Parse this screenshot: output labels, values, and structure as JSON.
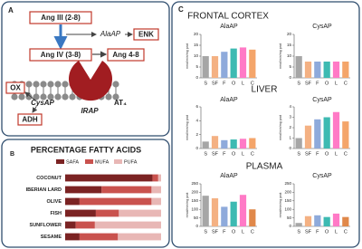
{
  "panels": {
    "a": "A",
    "b": "B",
    "c": "C",
    "sections": [
      "FRONTAL CORTEX",
      "LIVER",
      "PLASMA"
    ]
  },
  "diagram": {
    "ang3": "Ang III (2-8)",
    "alaap": "AlaAP",
    "enk": "ENK",
    "ang4": "Ang IV (3-8)",
    "ang48": "Ang 4-8",
    "ox": "OX",
    "cysap": "CysAP",
    "irap": "IRAP",
    "at4": "AT₄",
    "adh": "ADH"
  },
  "chart_data": [
    {
      "type": "hbar_stacked",
      "title": "PERCENTAGE FATTY ACIDS",
      "categories": [
        "COCONUT",
        "IBERIAN LARD",
        "OLIVE",
        "FISH",
        "SUNFLOWER",
        "SESAME"
      ],
      "xlim": [
        0,
        100
      ],
      "series": [
        {
          "name": "SAFA",
          "color": "#7b2323",
          "values": [
            91,
            38,
            15,
            32,
            11,
            15
          ]
        },
        {
          "name": "MUFA",
          "color": "#c9524e",
          "values": [
            6,
            52,
            75,
            24,
            20,
            40
          ]
        },
        {
          "name": "PUFA",
          "color": "#e8b7b5",
          "values": [
            3,
            10,
            10,
            44,
            69,
            45
          ]
        }
      ]
    },
    {
      "type": "bar",
      "title": "AlaAP",
      "y_label": "nmol/min/mg prot",
      "categories": [
        "S",
        "SF",
        "F",
        "O",
        "L",
        "C"
      ],
      "values": [
        10,
        10,
        12,
        13.5,
        14,
        13
      ],
      "colors": [
        "#a6a6a6",
        "#f4b183",
        "#8eaadb",
        "#3dbab2",
        "#ff7ac6",
        "#f4a56a"
      ],
      "ylim": [
        0,
        20
      ],
      "yticks": [
        0,
        5,
        10,
        15,
        20
      ]
    },
    {
      "type": "bar",
      "title": "CysAP",
      "y_label": "nmol/min/mg prot",
      "categories": [
        "S",
        "SF",
        "F",
        "O",
        "L",
        "C"
      ],
      "values": [
        10,
        7.5,
        7.5,
        7.5,
        7.5,
        7.5
      ],
      "colors": [
        "#a6a6a6",
        "#f4b183",
        "#8eaadb",
        "#3dbab2",
        "#ff7ac6",
        "#f4a56a"
      ],
      "ylim": [
        0,
        20
      ],
      "yticks": [
        0,
        5,
        10,
        15,
        20
      ]
    },
    {
      "type": "bar",
      "title": "AlaAP",
      "y_label": "nmol/min/mg prot",
      "categories": [
        "S",
        "SF",
        "F",
        "O",
        "L",
        "C"
      ],
      "values": [
        1,
        1.8,
        1.2,
        1.3,
        1.4,
        1.5
      ],
      "colors": [
        "#a6a6a6",
        "#f4b183",
        "#8eaadb",
        "#3dbab2",
        "#ff7ac6",
        "#f4a56a"
      ],
      "ylim": [
        0,
        6
      ],
      "yticks": [
        0,
        2,
        4,
        6
      ]
    },
    {
      "type": "bar",
      "title": "CysAP",
      "y_label": "nmol/min/mg prot",
      "categories": [
        "S",
        "SF",
        "F",
        "O",
        "L",
        "C"
      ],
      "values": [
        1,
        2.2,
        2.8,
        3,
        3.5,
        2.6
      ],
      "colors": [
        "#a6a6a6",
        "#f4b183",
        "#8eaadb",
        "#3dbab2",
        "#ff7ac6",
        "#f4a56a"
      ],
      "ylim": [
        0,
        4
      ],
      "yticks": [
        0,
        1,
        2,
        3,
        4
      ]
    },
    {
      "type": "bar",
      "title": "AlaAP",
      "y_label": "nmol/min/mg prot",
      "categories": [
        "S",
        "SF",
        "F",
        "O",
        "L",
        "C"
      ],
      "values": [
        180,
        165,
        115,
        145,
        185,
        100
      ],
      "colors": [
        "#a6a6a6",
        "#f4b183",
        "#8eaadb",
        "#3dbab2",
        "#ff7ac6",
        "#e0884a"
      ],
      "ylim": [
        0,
        250
      ],
      "yticks": [
        0,
        50,
        100,
        150,
        200,
        250
      ]
    },
    {
      "type": "bar",
      "title": "CysAP",
      "y_label": "nmol/min/mg prot",
      "categories": [
        "S",
        "SF",
        "F",
        "O",
        "L",
        "C"
      ],
      "values": [
        20,
        60,
        65,
        55,
        75,
        55
      ],
      "colors": [
        "#a6a6a6",
        "#f4b183",
        "#8eaadb",
        "#3dbab2",
        "#ff7ac6",
        "#e0884a"
      ],
      "ylim": [
        0,
        250
      ],
      "yticks": [
        0,
        50,
        100,
        150,
        200,
        250
      ]
    }
  ]
}
